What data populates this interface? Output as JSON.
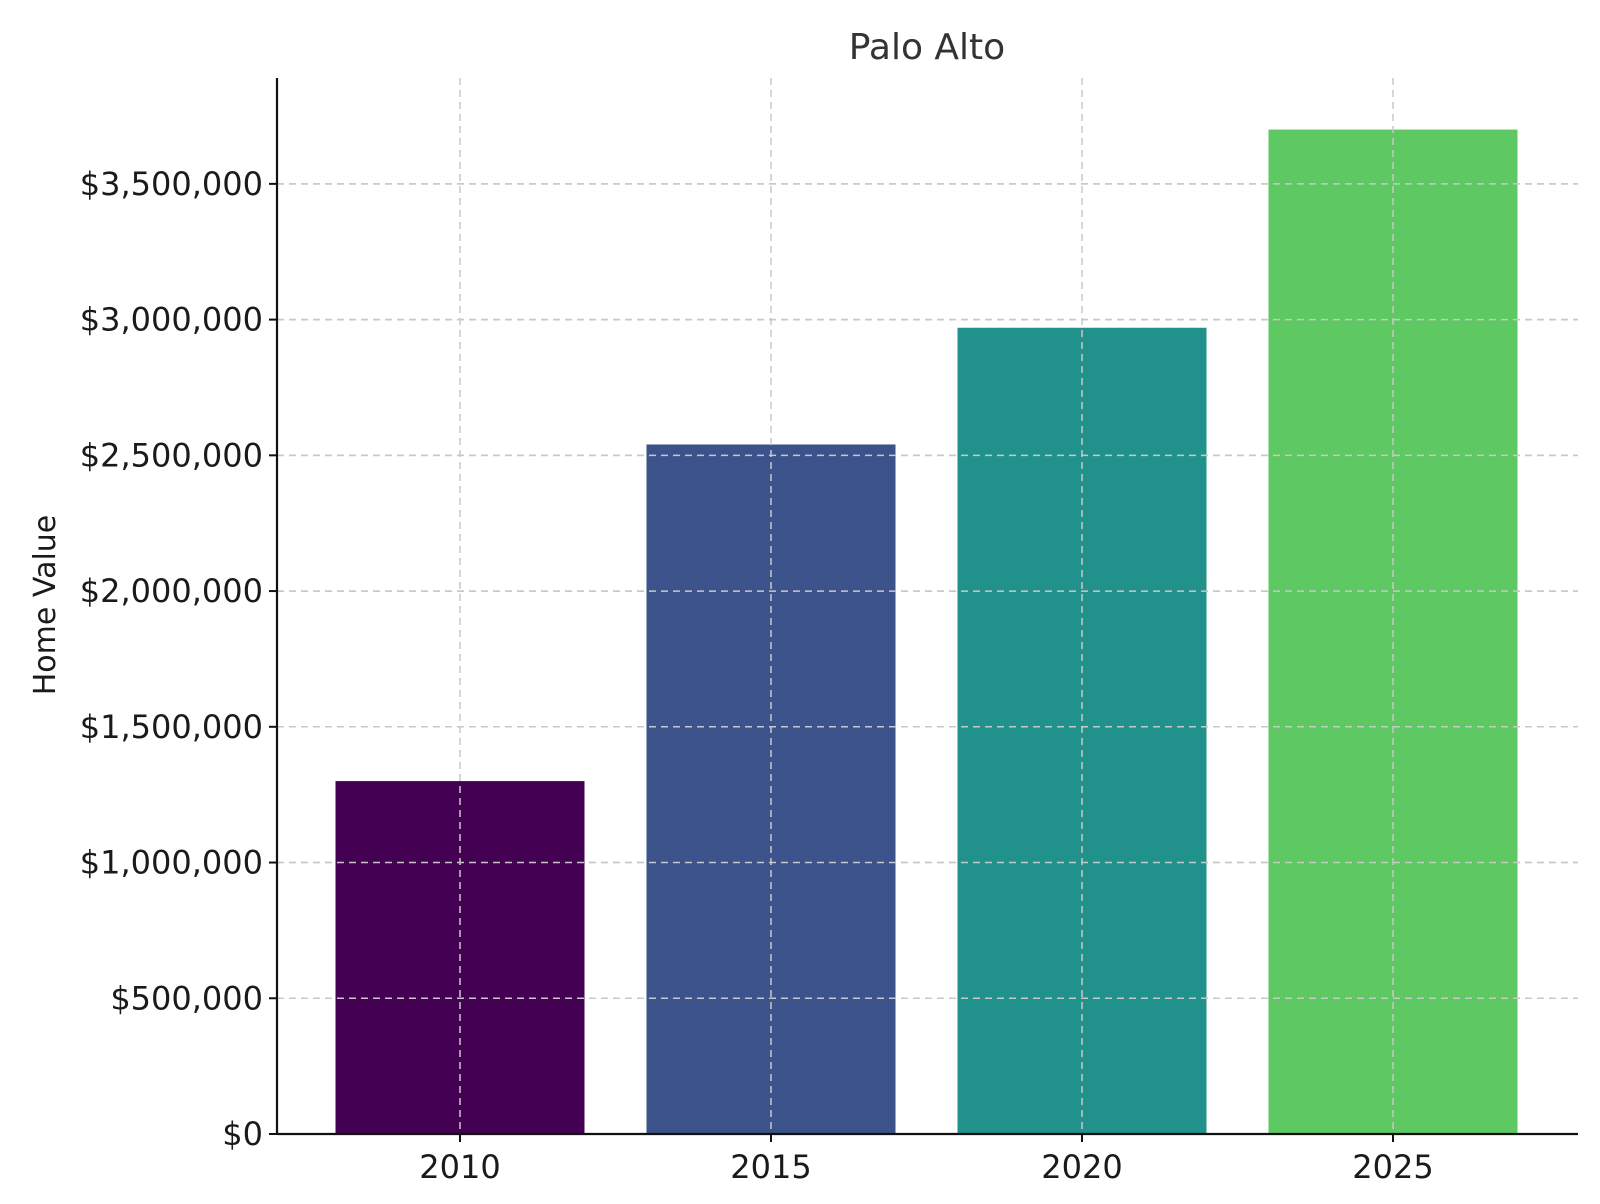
{
  "chart_data": {
    "type": "bar",
    "title": "Palo Alto",
    "xlabel": "",
    "ylabel": "Home Value",
    "categories": [
      "2010",
      "2015",
      "2020",
      "2025"
    ],
    "values": [
      1300000,
      2540000,
      2970000,
      3700000
    ],
    "colors": [
      "#440154",
      "#3b528b",
      "#21918c",
      "#5ec962"
    ],
    "ylim": [
      0,
      3890000
    ],
    "yticks": [
      0,
      500000,
      1000000,
      1500000,
      2000000,
      2500000,
      3000000,
      3500000
    ],
    "ytick_labels": [
      "$0",
      "$500,000",
      "$1,000,000",
      "$1,500,000",
      "$2,000,000",
      "$2,500,000",
      "$3,000,000",
      "$3,500,000"
    ],
    "grid": true,
    "grid_style": "dashed"
  }
}
